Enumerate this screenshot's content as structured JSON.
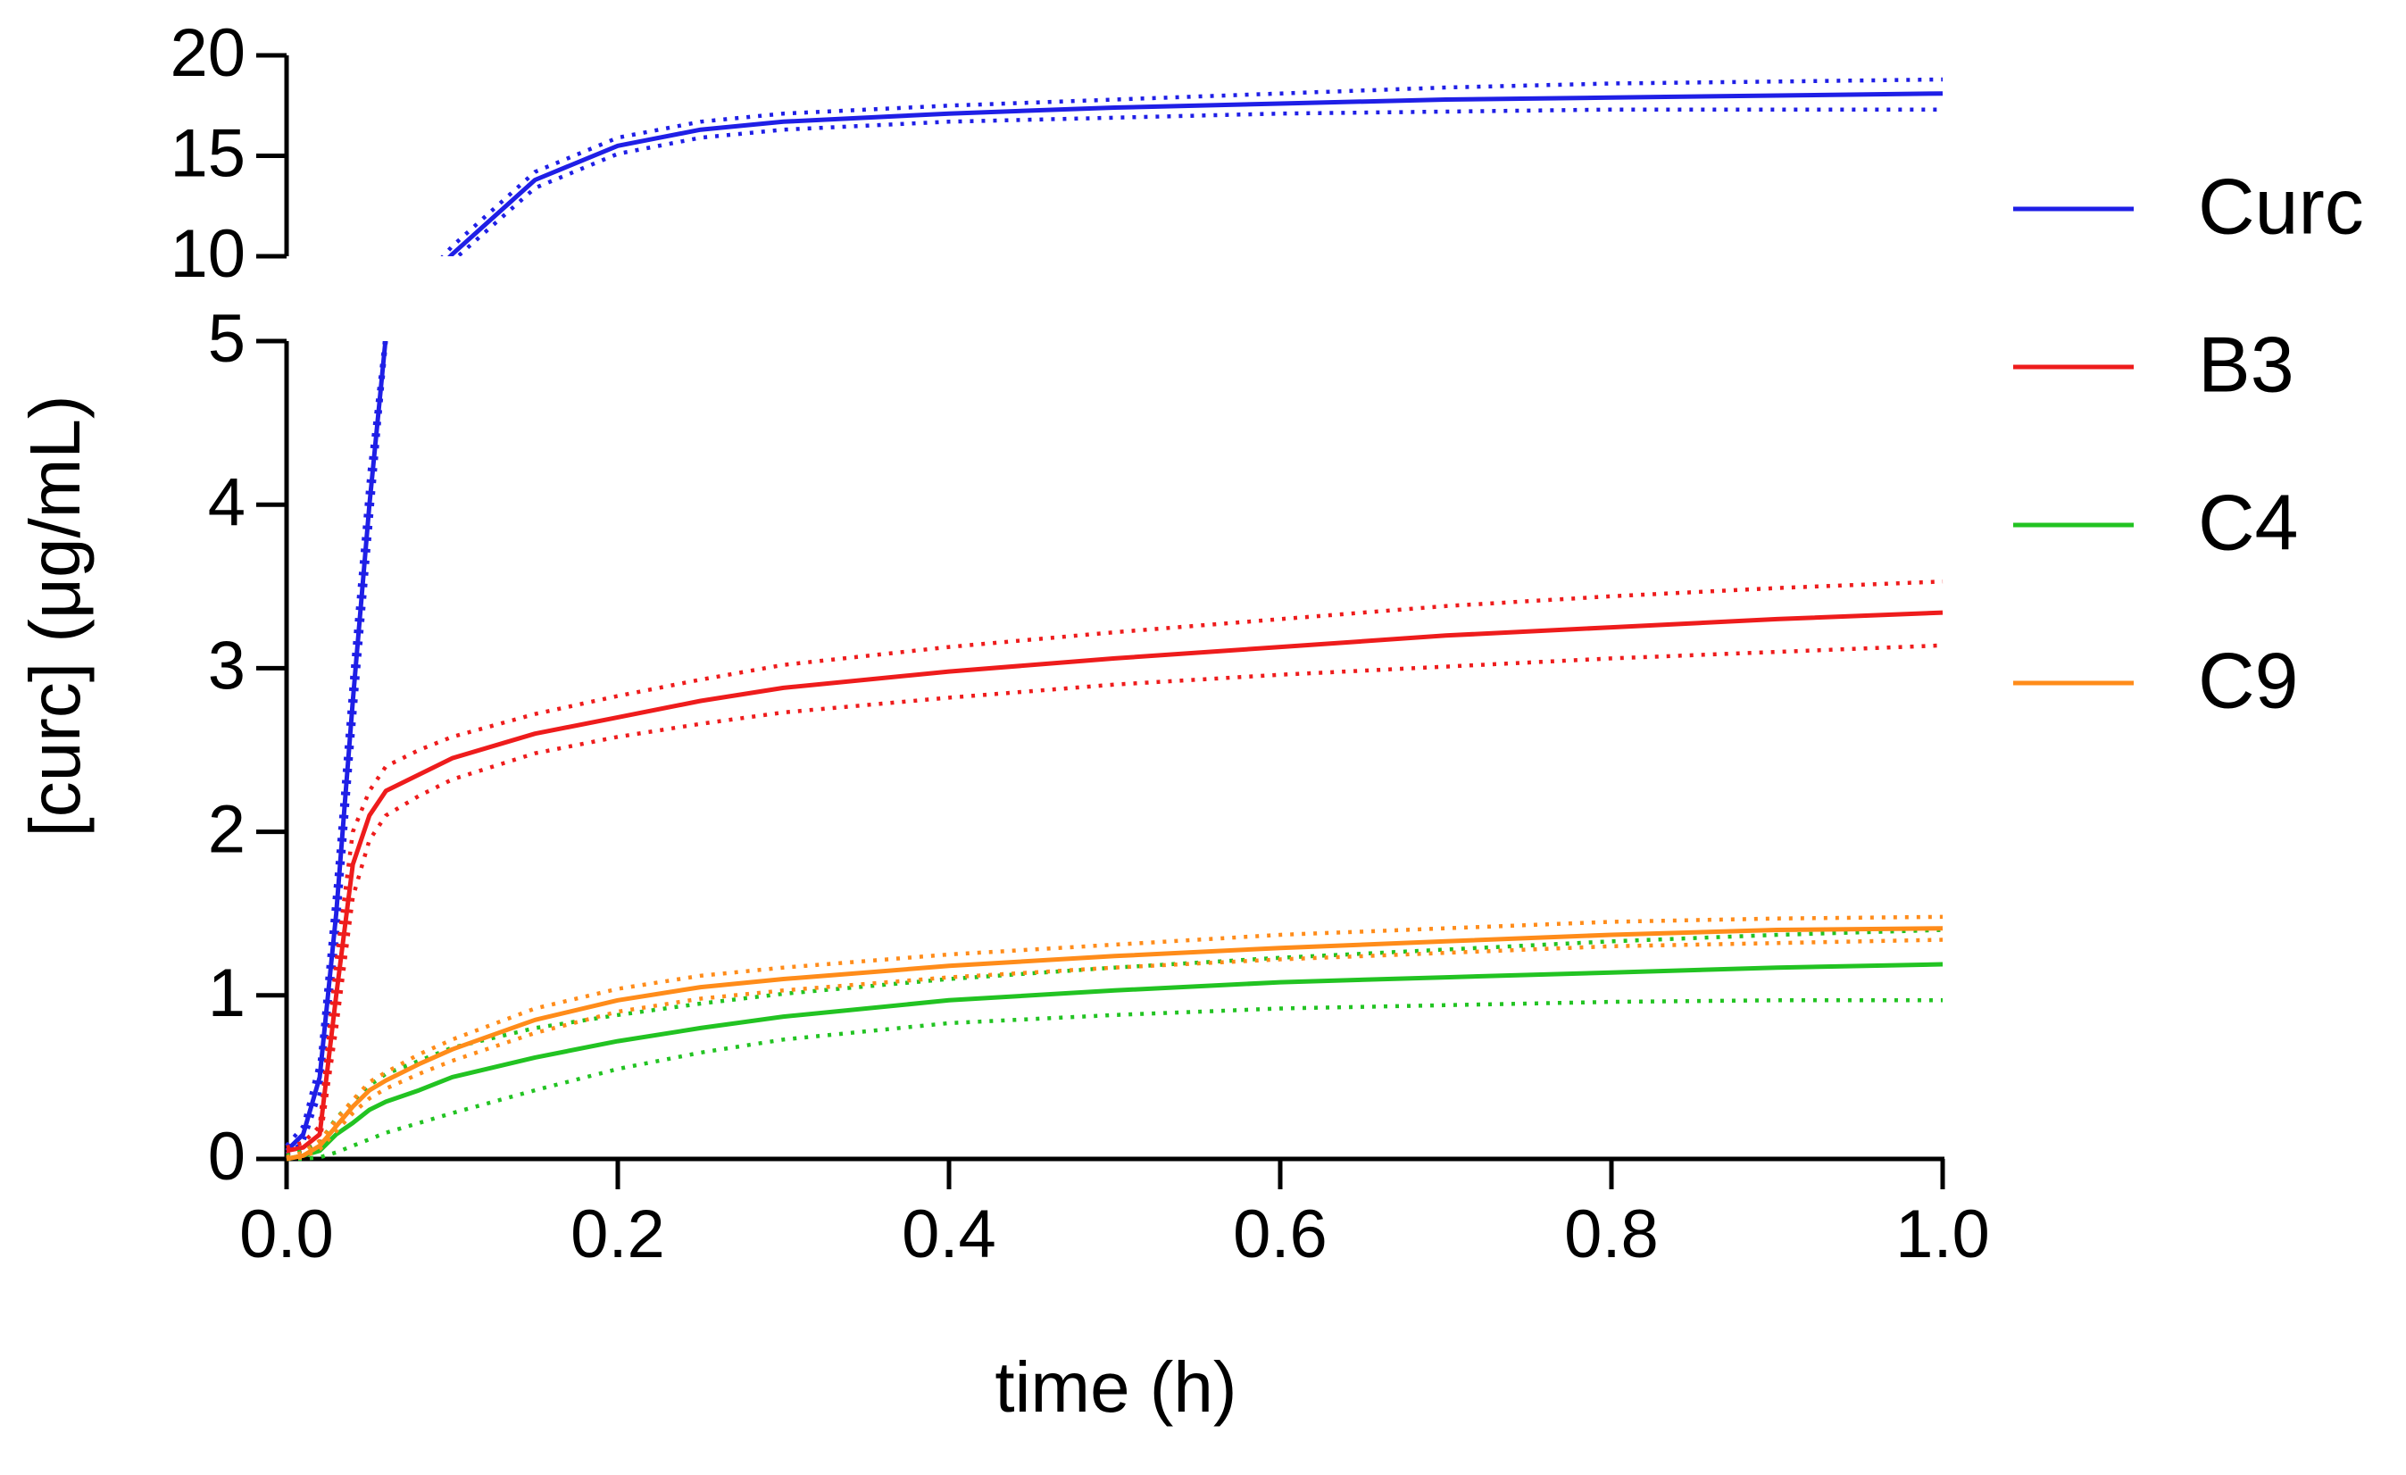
{
  "chart_data": {
    "type": "line",
    "xlabel": "time (h)",
    "ylabel": "[curc] (μg/mL)",
    "x": [
      0,
      0.01,
      0.02,
      0.03,
      0.04,
      0.05,
      0.06,
      0.08,
      0.1,
      0.15,
      0.2,
      0.25,
      0.3,
      0.4,
      0.5,
      0.6,
      0.7,
      0.8,
      0.9,
      1.0
    ],
    "xlim": [
      0,
      1
    ],
    "xticks": [
      {
        "value": 0,
        "label": "0.0"
      },
      0.2,
      0.4,
      0.6,
      0.8,
      {
        "value": 1,
        "label": "1.0"
      }
    ],
    "ylim": [
      0,
      20
    ],
    "yticks": [
      0,
      1,
      2,
      3,
      4,
      5,
      10,
      15,
      20
    ],
    "y_break": [
      5,
      10
    ],
    "legend": "right",
    "series": [
      {
        "name": "Curc",
        "color": "#1f1fe6",
        "values": [
          0.05,
          0.15,
          0.5,
          1.5,
          2.8,
          4.0,
          5.3,
          8.0,
          10.1,
          13.8,
          15.5,
          16.3,
          16.7,
          17.1,
          17.4,
          17.6,
          17.8,
          17.9,
          18.0,
          18.1
        ],
        "lower": [
          0.03,
          0.1,
          0.4,
          1.3,
          2.6,
          3.8,
          5.0,
          7.6,
          9.7,
          13.4,
          15.1,
          15.9,
          16.3,
          16.7,
          16.9,
          17.1,
          17.2,
          17.3,
          17.3,
          17.3
        ],
        "upper": [
          0.08,
          0.2,
          0.6,
          1.7,
          3.0,
          4.2,
          5.6,
          8.4,
          10.5,
          14.2,
          15.9,
          16.7,
          17.1,
          17.5,
          17.8,
          18.1,
          18.4,
          18.6,
          18.7,
          18.8
        ]
      },
      {
        "name": "B3",
        "color": "#ee1c1c",
        "values": [
          0.05,
          0.07,
          0.15,
          1.0,
          1.8,
          2.1,
          2.25,
          2.35,
          2.45,
          2.6,
          2.7,
          2.8,
          2.88,
          2.98,
          3.06,
          3.13,
          3.2,
          3.25,
          3.3,
          3.34
        ],
        "lower": [
          0.03,
          0.05,
          0.1,
          0.8,
          1.6,
          1.95,
          2.1,
          2.22,
          2.32,
          2.48,
          2.58,
          2.66,
          2.73,
          2.82,
          2.9,
          2.96,
          3.01,
          3.06,
          3.1,
          3.14
        ],
        "upper": [
          0.07,
          0.1,
          0.2,
          1.2,
          2.0,
          2.25,
          2.4,
          2.5,
          2.58,
          2.72,
          2.83,
          2.93,
          3.02,
          3.13,
          3.22,
          3.3,
          3.38,
          3.44,
          3.49,
          3.53
        ]
      },
      {
        "name": "C4",
        "color": "#22c322",
        "values": [
          0,
          0.02,
          0.05,
          0.15,
          0.22,
          0.3,
          0.35,
          0.42,
          0.5,
          0.62,
          0.72,
          0.8,
          0.87,
          0.97,
          1.03,
          1.08,
          1.11,
          1.14,
          1.17,
          1.19
        ],
        "lower": [
          0,
          0.0,
          0.01,
          0.04,
          0.08,
          0.12,
          0.16,
          0.22,
          0.28,
          0.42,
          0.55,
          0.65,
          0.73,
          0.83,
          0.88,
          0.92,
          0.94,
          0.96,
          0.97,
          0.97
        ],
        "upper": [
          0.02,
          0.05,
          0.1,
          0.25,
          0.35,
          0.45,
          0.52,
          0.6,
          0.68,
          0.8,
          0.88,
          0.95,
          1.01,
          1.1,
          1.17,
          1.23,
          1.28,
          1.33,
          1.37,
          1.4
        ]
      },
      {
        "name": "C9",
        "color": "#ff8c1a",
        "values": [
          0,
          0.02,
          0.08,
          0.2,
          0.32,
          0.42,
          0.48,
          0.58,
          0.67,
          0.85,
          0.97,
          1.05,
          1.1,
          1.18,
          1.24,
          1.29,
          1.33,
          1.37,
          1.4,
          1.41
        ],
        "lower": [
          0,
          0.01,
          0.06,
          0.17,
          0.28,
          0.37,
          0.43,
          0.52,
          0.6,
          0.77,
          0.9,
          0.98,
          1.03,
          1.11,
          1.17,
          1.22,
          1.26,
          1.3,
          1.32,
          1.34
        ],
        "upper": [
          0.01,
          0.04,
          0.11,
          0.24,
          0.36,
          0.47,
          0.53,
          0.64,
          0.73,
          0.92,
          1.04,
          1.12,
          1.17,
          1.25,
          1.31,
          1.37,
          1.41,
          1.45,
          1.47,
          1.48
        ]
      }
    ]
  }
}
